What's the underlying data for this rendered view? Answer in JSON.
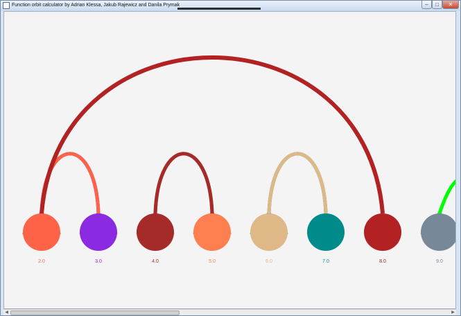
{
  "window": {
    "title": "Function orbit calculator by Adrian Klessa, Jakub Rajewicz and Danila Prymak",
    "controls": {
      "minimize": "–",
      "maximize": "□",
      "close": "✕"
    }
  },
  "nodes": [
    {
      "label": "2.0",
      "color": "#ff6347"
    },
    {
      "label": "3.0",
      "color": "#8a2be2"
    },
    {
      "label": "4.0",
      "color": "#a52a2a"
    },
    {
      "label": "5.0",
      "color": "#ff7f50"
    },
    {
      "label": "6.0",
      "color": "#deb887"
    },
    {
      "label": "7.0",
      "color": "#008b8b"
    },
    {
      "label": "8.0",
      "color": "#b22222"
    },
    {
      "label": "9.0",
      "color": "#778899"
    }
  ],
  "arrows": [
    {
      "from": "3.0",
      "to": "2.0",
      "color": "#8a2be2"
    },
    {
      "from": "2.0",
      "to": "3.0",
      "color": "#ff6347"
    },
    {
      "from": "5.0",
      "to": "4.0",
      "color": "#ff7f50"
    },
    {
      "from": "4.0",
      "to": "5.0",
      "color": "#a52a2a"
    },
    {
      "from": "7.0",
      "to": "6.0",
      "color": "#008b8b"
    },
    {
      "from": "6.0",
      "to": "7.0",
      "color": "#deb887"
    },
    {
      "from": "8.0",
      "to": "2.0",
      "color": "#b22222"
    },
    {
      "from": "offscreen",
      "to": "9.0",
      "color": "#00ff00"
    }
  ],
  "scrollbar": {
    "left_arrow": "◀",
    "right_arrow": "▶"
  }
}
